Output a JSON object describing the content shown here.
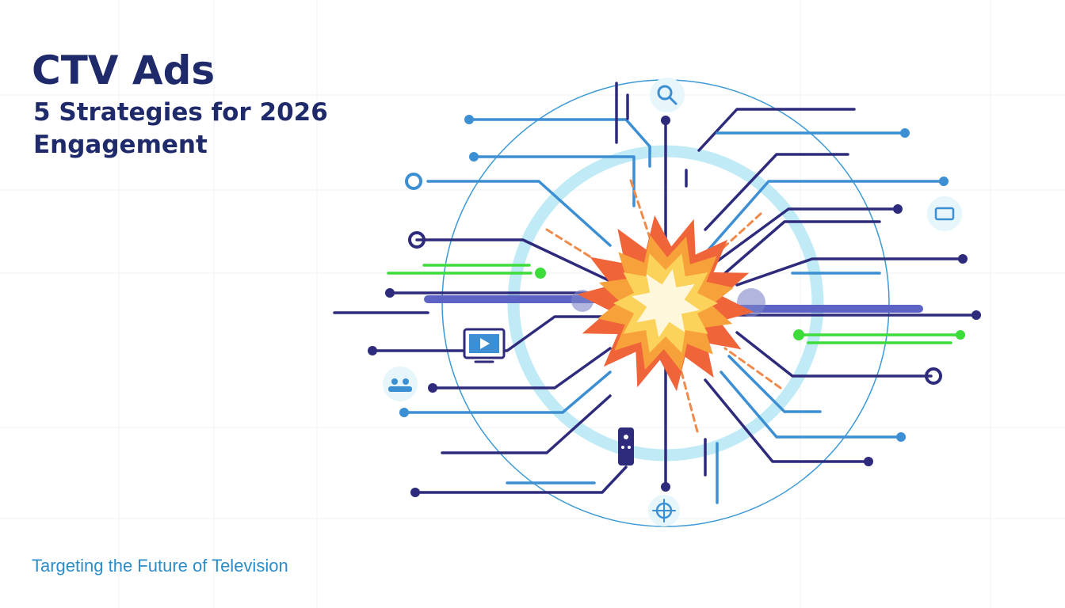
{
  "header": {
    "title": "CTV Ads",
    "subtitle_lines": [
      "5 Strategies for 2026",
      "Engagement"
    ]
  },
  "footer": {
    "tagline": "Targeting the Future of Television"
  }
}
